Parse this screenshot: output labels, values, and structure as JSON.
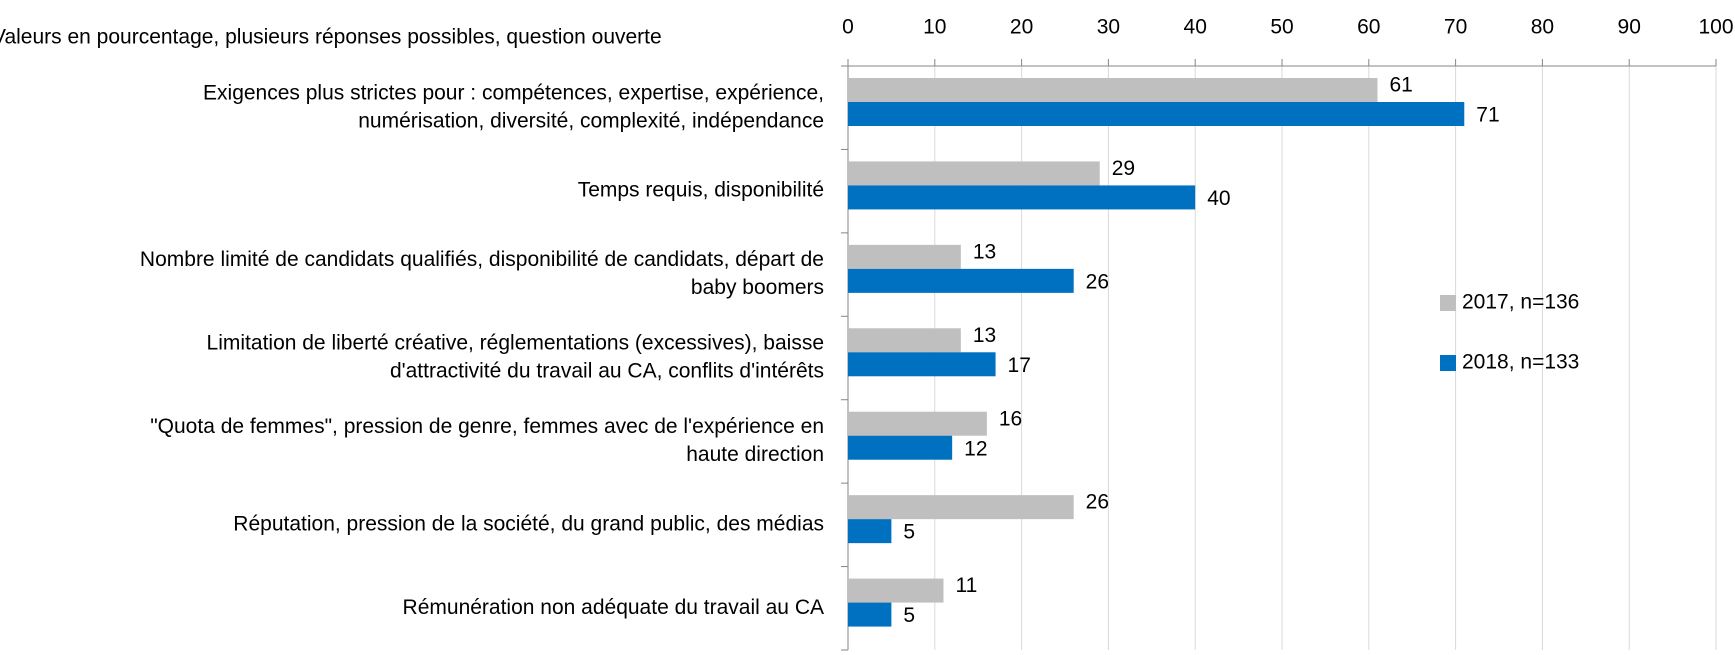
{
  "chart_data": {
    "type": "bar",
    "orientation": "horizontal",
    "subtitle": "Valeurs en pourcentage, plusieurs réponses possibles, question ouverte",
    "categories": [
      [
        "Exigences plus strictes pour : compétences, expertise, expérience,",
        "numérisation, diversité, complexité, indépendance"
      ],
      [
        "Temps requis, disponibilité"
      ],
      [
        "Nombre limité de candidats qualifiés, disponibilité de candidats, départ de",
        "baby boomers"
      ],
      [
        "Limitation de liberté créative, réglementations (excessives), baisse",
        "d'attractivité du travail au CA, conflits d'intérêts"
      ],
      [
        "\"Quota de femmes\", pression de genre, femmes avec de l'expérience en",
        "haute direction"
      ],
      [
        "Réputation, pression de la société, du grand public, des médias"
      ],
      [
        "Rémunération non adéquate du travail au CA"
      ]
    ],
    "series": [
      {
        "name": "2017, n=136",
        "color": "#bfbfbf",
        "values": [
          61,
          29,
          13,
          13,
          16,
          26,
          11
        ]
      },
      {
        "name": "2018, n=133",
        "color": "#0070c0",
        "values": [
          71,
          40,
          26,
          17,
          12,
          5,
          5
        ]
      }
    ],
    "xlim": [
      0,
      100
    ],
    "xticks": [
      0,
      10,
      20,
      30,
      40,
      50,
      60,
      70,
      80,
      90,
      100
    ],
    "grid": true,
    "legend": "right"
  }
}
